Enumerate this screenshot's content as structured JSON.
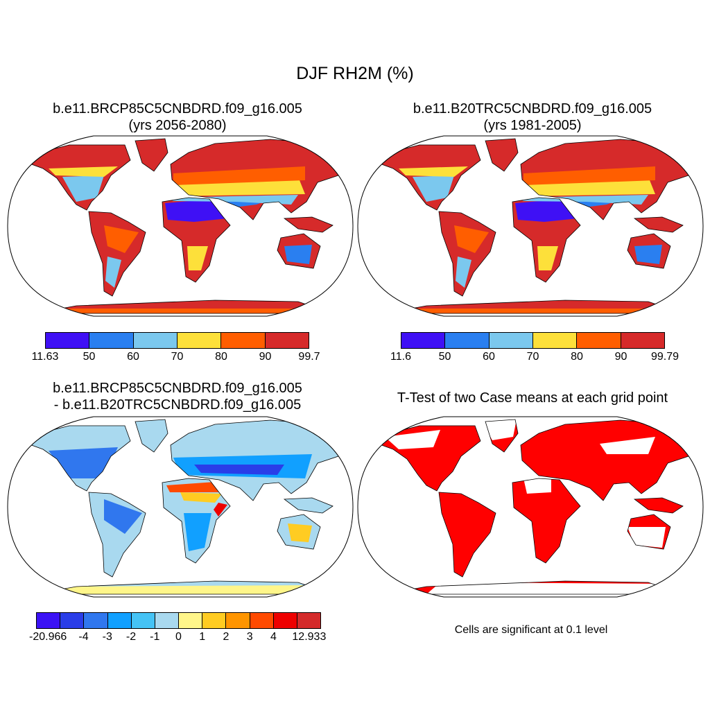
{
  "title": "DJF RH2M (%)",
  "panels": [
    {
      "title_line1": "b.e11.BRCP85C5CNBDRD.f09_g16.005",
      "title_line2": "(yrs 2056-2080)",
      "colorbar": {
        "labels": [
          "11.63",
          "50",
          "60",
          "70",
          "80",
          "90",
          "99.7"
        ],
        "colors": [
          "#3f10f5",
          "#2a7ff0",
          "#7bc8ee",
          "#fde03a",
          "#ff5e00",
          "#d62a2a"
        ]
      }
    },
    {
      "title_line1": "b.e11.B20TRC5CNBDRD.f09_g16.005",
      "title_line2": "(yrs 1981-2005)",
      "colorbar": {
        "labels": [
          "11.6",
          "50",
          "60",
          "70",
          "80",
          "90",
          "99.79"
        ],
        "colors": [
          "#3f10f5",
          "#2a7ff0",
          "#7bc8ee",
          "#fde03a",
          "#ff5e00",
          "#d62a2a"
        ]
      }
    },
    {
      "title_line1": "b.e11.BRCP85C5CNBDRD.f09_g16.005",
      "title_line2": "- b.e11.B20TRC5CNBDRD.f09_g16.005",
      "colorbar": {
        "labels": [
          "-20.966",
          "-4",
          "-3",
          "-2",
          "-1",
          "0",
          "1",
          "2",
          "3",
          "4",
          "12.933"
        ],
        "colors": [
          "#3b12f5",
          "#2a3de8",
          "#3077ee",
          "#11a0ff",
          "#45c3f5",
          "#a9d9ef",
          "#fff68a",
          "#ffcc22",
          "#ff9500",
          "#ff4a00",
          "#ee0000",
          "#d42a2a"
        ]
      }
    },
    {
      "title_line1": "T-Test of two Case means at each grid point",
      "title_line2": "",
      "significance_color": "#ff0000",
      "note": "Cells are significant at 0.1 level"
    }
  ]
}
